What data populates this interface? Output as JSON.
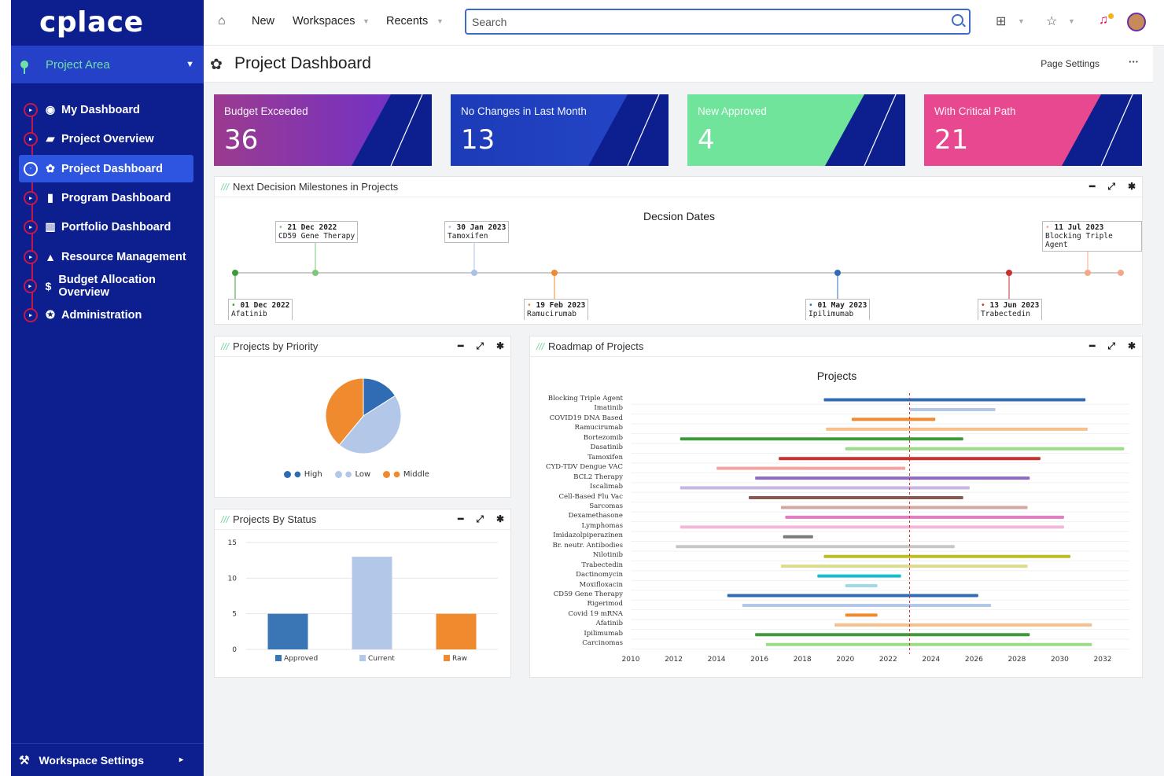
{
  "brand": {
    "logo": "cplace"
  },
  "sidebar": {
    "area_label": "Project Area",
    "items": [
      {
        "label": "My Dashboard",
        "icon": "user-circle-icon",
        "glyph": "◉"
      },
      {
        "label": "Project Overview",
        "icon": "folder-open-icon",
        "glyph": "▰"
      },
      {
        "label": "Project Dashboard",
        "icon": "dashboard-gauge-icon",
        "glyph": "✿",
        "active": true
      },
      {
        "label": "Program Dashboard",
        "icon": "book-icon",
        "glyph": "▮"
      },
      {
        "label": "Portfolio Dashboard",
        "icon": "library-books-icon",
        "glyph": "▥"
      },
      {
        "label": "Resource Management",
        "icon": "area-chart-icon",
        "glyph": "▲"
      },
      {
        "label": "Budget Allocation Overview",
        "icon": "dollar-icon",
        "glyph": "$"
      },
      {
        "label": "Administration",
        "icon": "user-gear-icon",
        "glyph": "✪"
      }
    ],
    "workspace_settings": "Workspace Settings"
  },
  "topbar": {
    "new": "New",
    "workspaces": "Workspaces",
    "recents": "Recents",
    "search_placeholder": "Search"
  },
  "page": {
    "title": "Project Dashboard",
    "settings": "Page Settings",
    "more": "···"
  },
  "kpis": [
    {
      "label": "Budget Exceeded",
      "value": "36",
      "color_a": "#9b3b8f",
      "color_b": "#6a2fd0"
    },
    {
      "label": "No Changes in Last Month",
      "value": "13",
      "color_a": "#1c3bb8",
      "color_b": "#2547c8"
    },
    {
      "label": "New Approved",
      "value": "4",
      "color_a": "#6fe49a",
      "color_b": "#6fe49a"
    },
    {
      "label": "With Critical Path",
      "value": "21",
      "color_a": "#e8488f",
      "color_b": "#e8488f"
    }
  ],
  "milestones_panel": {
    "title": "Next Decision Milestones in Projects",
    "chart_title": "Decsion Dates",
    "top": [
      {
        "date": "21 Dec 2022",
        "name": "CD59 Gene Therapy",
        "color": "#7ec77a"
      },
      {
        "date": "30 Jan 2023",
        "name": "Tamoxifen",
        "color": "#a9c1e8"
      },
      {
        "date": "11 Jul 2023",
        "name": "Blocking Triple Agent",
        "color": "#f3a889"
      }
    ],
    "bottom": [
      {
        "date": "01 Dec 2022",
        "name": "Afatinib",
        "color": "#3f9a3a"
      },
      {
        "date": "19 Feb 2023",
        "name": "Ramucirumab",
        "color": "#f08a2e"
      },
      {
        "date": "01 May 2023",
        "name": "Ipilimumab",
        "color": "#2f6cb3"
      },
      {
        "date": "13 Jun 2023",
        "name": "Trabectedin",
        "color": "#c8312e"
      }
    ]
  },
  "priority_panel": {
    "title": "Projects by Priority",
    "legend": [
      "High",
      "Low",
      "Middle"
    ]
  },
  "status_panel": {
    "title": "Projects By Status"
  },
  "roadmap_panel": {
    "title": "Roadmap of Projects"
  },
  "colors": {
    "sidebar": "#0d1f8f",
    "accent": "#2e55e0",
    "marker": "#c2184b"
  },
  "chart_data": [
    {
      "type": "pie",
      "labels": [
        "High",
        "Low",
        "Middle"
      ],
      "values": [
        16,
        45,
        39
      ],
      "colors": [
        "#2f6cb3",
        "#b3c7e8",
        "#f08a2e"
      ]
    },
    {
      "type": "bar",
      "categories": [
        "Approved",
        "Current",
        "Raw"
      ],
      "values": [
        5,
        13,
        5
      ],
      "colors": [
        "#3a75b5",
        "#b3c7e8",
        "#f08a2e"
      ],
      "yticks": [
        0,
        5,
        10,
        15
      ],
      "ylim": [
        0,
        15
      ]
    },
    {
      "type": "bar",
      "title": "Projects",
      "orientation": "horizontal-range",
      "xlim": [
        2010,
        2033
      ],
      "xticks": [
        2010,
        2012,
        2014,
        2016,
        2018,
        2020,
        2022,
        2024,
        2026,
        2028,
        2030,
        2032
      ],
      "today_marker": 2023,
      "rows": [
        {
          "name": "Blocking Triple Agent",
          "start": 2019.0,
          "end": 2031.2,
          "color": "#2f6cb3"
        },
        {
          "name": "Imatinib",
          "start": 2023.0,
          "end": 2027.0,
          "color": "#b3c7e8"
        },
        {
          "name": "COVID19 DNA Based",
          "start": 2020.3,
          "end": 2024.2,
          "color": "#f08a2e"
        },
        {
          "name": "Ramucirumab",
          "start": 2019.1,
          "end": 2031.3,
          "color": "#f6c08a"
        },
        {
          "name": "Bortezomib",
          "start": 2012.3,
          "end": 2025.5,
          "color": "#3f9a3a"
        },
        {
          "name": "Dasatinib",
          "start": 2020.0,
          "end": 2033.0,
          "color": "#9bdc88"
        },
        {
          "name": "Tamoxifen",
          "start": 2016.9,
          "end": 2029.1,
          "color": "#c8312e"
        },
        {
          "name": "CYD-TDV Dengue VAC",
          "start": 2014.0,
          "end": 2022.8,
          "color": "#f3a4a0"
        },
        {
          "name": "BCL2 Therapy",
          "start": 2015.8,
          "end": 2028.6,
          "color": "#8f6bc0"
        },
        {
          "name": "Iscalimab",
          "start": 2012.3,
          "end": 2025.8,
          "color": "#c7b6e0"
        },
        {
          "name": "Cell-Based Flu Vac",
          "start": 2015.5,
          "end": 2025.5,
          "color": "#8a5a50"
        },
        {
          "name": "Sarcomas",
          "start": 2017.0,
          "end": 2028.5,
          "color": "#d4a8a2"
        },
        {
          "name": "Dexamethasone",
          "start": 2017.2,
          "end": 2030.2,
          "color": "#e07dc3"
        },
        {
          "name": "Lymphomas",
          "start": 2012.3,
          "end": 2030.2,
          "color": "#f2b8d8"
        },
        {
          "name": "Imidazolpiperazinen",
          "start": 2017.1,
          "end": 2018.5,
          "color": "#7a7a7a"
        },
        {
          "name": "Br. neutr. Antibodies",
          "start": 2012.1,
          "end": 2025.1,
          "color": "#c7c7c7"
        },
        {
          "name": "Nilotinib",
          "start": 2019.0,
          "end": 2030.5,
          "color": "#bcbd22"
        },
        {
          "name": "Trabectedin",
          "start": 2017.0,
          "end": 2028.5,
          "color": "#dbdb8d"
        },
        {
          "name": "Dactinomycin",
          "start": 2018.7,
          "end": 2022.6,
          "color": "#17becf"
        },
        {
          "name": "Moxifloxacin",
          "start": 2020.0,
          "end": 2021.5,
          "color": "#9edae5"
        },
        {
          "name": "CD59 Gene Therapy",
          "start": 2014.5,
          "end": 2026.2,
          "color": "#2f6cb3"
        },
        {
          "name": "Rigerimod",
          "start": 2015.2,
          "end": 2026.8,
          "color": "#b3c7e8"
        },
        {
          "name": "Covid 19 mRNA",
          "start": 2020.0,
          "end": 2021.5,
          "color": "#f08a2e"
        },
        {
          "name": "Afatinib",
          "start": 2019.5,
          "end": 2031.5,
          "color": "#f6c08a"
        },
        {
          "name": "Ipilimumab",
          "start": 2015.8,
          "end": 2028.6,
          "color": "#3f9a3a"
        },
        {
          "name": "Carcinomas",
          "start": 2016.3,
          "end": 2031.5,
          "color": "#9bdc88"
        }
      ]
    }
  ]
}
